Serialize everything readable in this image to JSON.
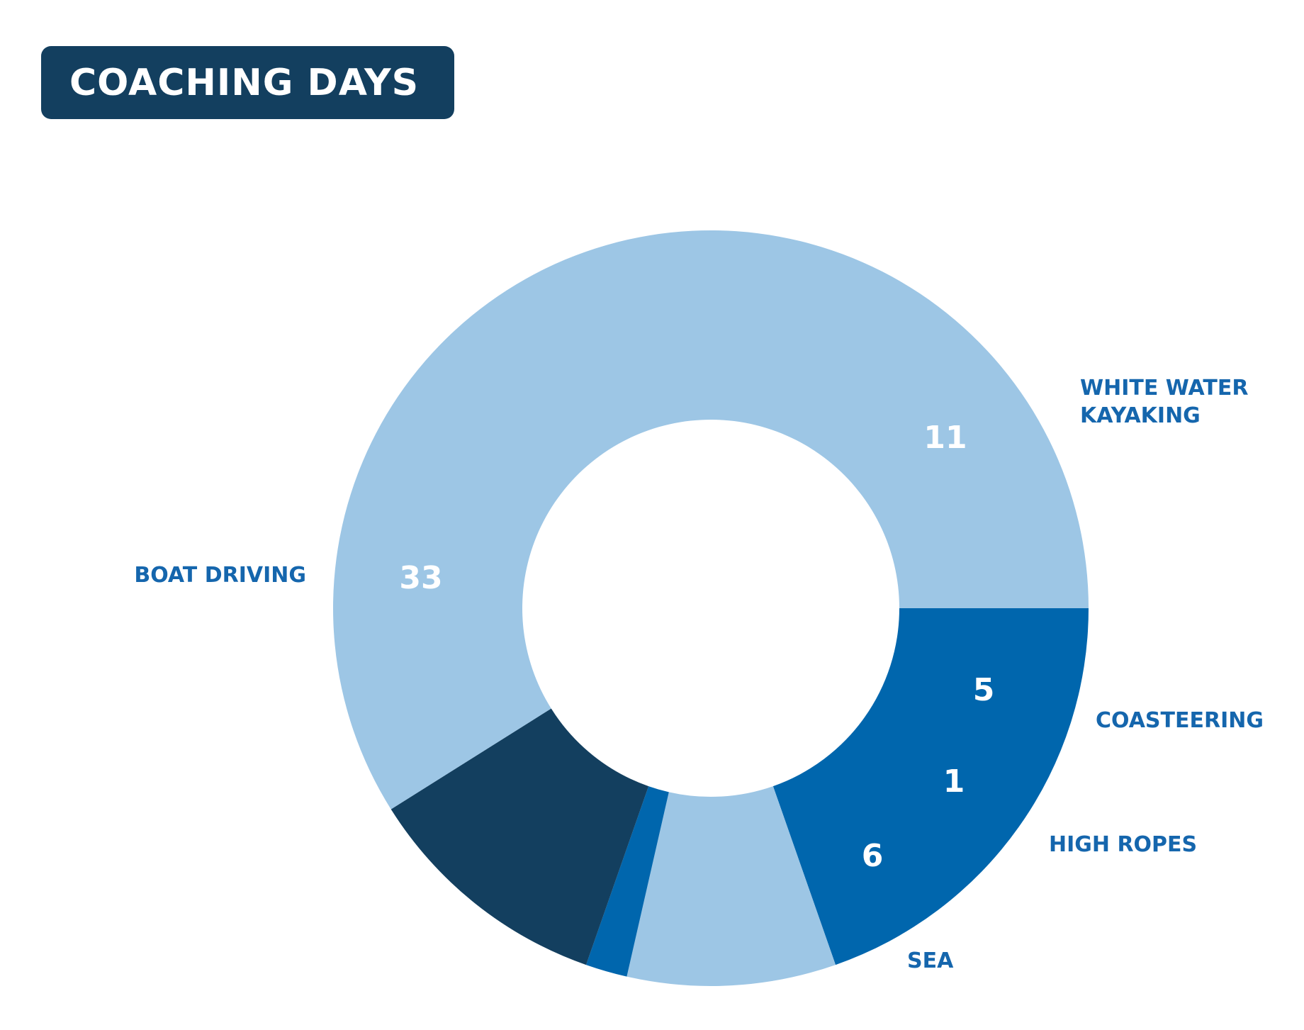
{
  "title": "COACHING DAYS",
  "chart_data": {
    "type": "pie",
    "title": "COACHING DAYS",
    "donut": true,
    "slices": [
      {
        "label": "WHITE WATER KAYAKING",
        "label_lines": [
          "WHITE WATER",
          "KAYAKING"
        ],
        "value": 11,
        "value_text": "11",
        "color": "#0066ad"
      },
      {
        "label": "COASTEERING",
        "label_lines": [
          "COASTEERING"
        ],
        "value": 5,
        "value_text": "5",
        "color": "#9dc6e5"
      },
      {
        "label": "HIGH ROPES",
        "label_lines": [
          "HIGH ROPES"
        ],
        "value": 1,
        "value_text": "1",
        "color": "#0066ad"
      },
      {
        "label": "SEA",
        "label_lines": [
          "SEA"
        ],
        "value": 6,
        "value_text": "6",
        "color": "#133f5f"
      },
      {
        "label": "BOAT DRIVING",
        "label_lines": [
          "BOAT DRIVING"
        ],
        "value": 33,
        "value_text": "33",
        "color": "#9dc6e5"
      }
    ],
    "label_color": "#1566ad",
    "value_label_color": "#ffffff"
  }
}
